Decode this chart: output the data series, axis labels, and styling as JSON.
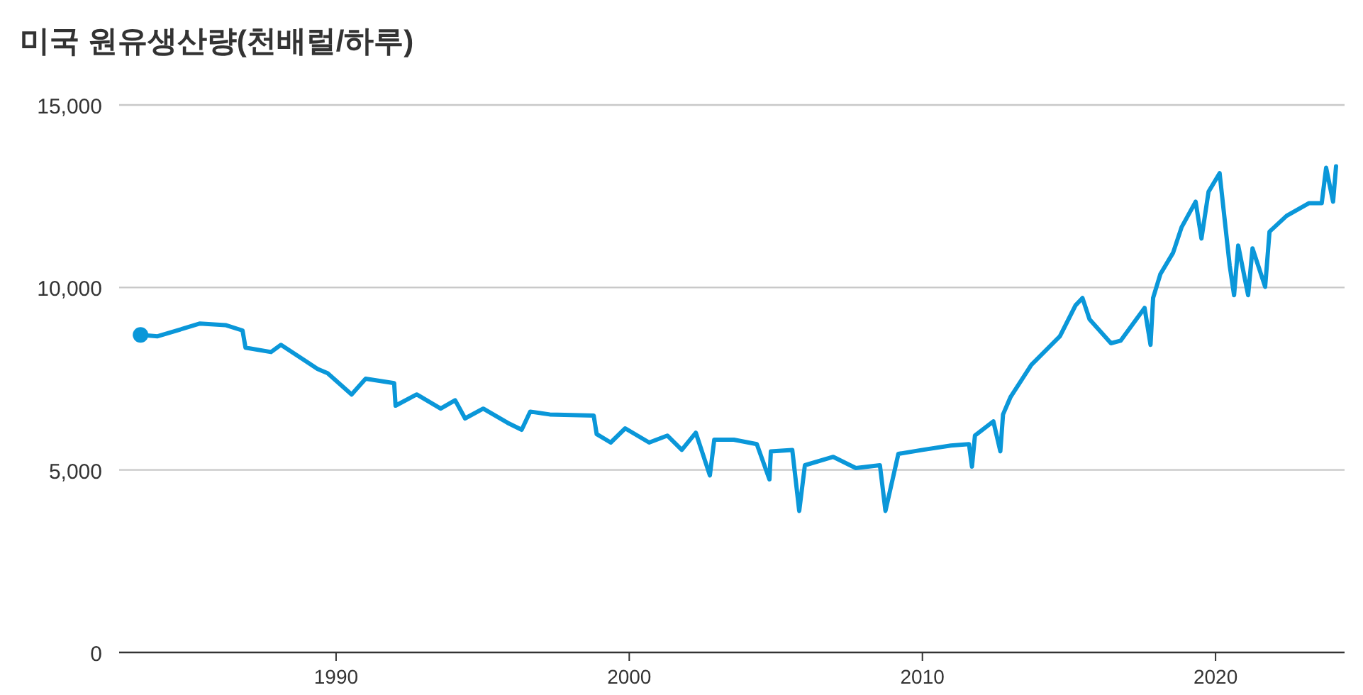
{
  "chart_data": {
    "type": "line",
    "title": "미국 원유생산량(천배럴/하루)",
    "xlim": [
      1982.6,
      2024.4
    ],
    "xticks": [
      1990,
      2000,
      2010,
      2020
    ],
    "ylim": [
      0,
      15000
    ],
    "yticks": [
      {
        "value": 0,
        "label": "0"
      },
      {
        "value": 5000,
        "label": "5,000"
      },
      {
        "value": 10000,
        "label": "10,000"
      },
      {
        "value": 15000,
        "label": "15,000"
      }
    ],
    "grid": "y",
    "series": [
      {
        "color": "#0a97d9",
        "x": [
          1983.33,
          1983.91,
          1985.36,
          1986.23,
          1986.81,
          1986.91,
          1987.78,
          1988.12,
          1989.37,
          1989.71,
          1990.53,
          1991.01,
          1991.98,
          1992.03,
          1992.75,
          1993.57,
          1994.06,
          1994.4,
          1995.02,
          1995.85,
          1996.33,
          1996.62,
          1997.29,
          1998.79,
          1998.89,
          1999.37,
          1999.86,
          2000.68,
          2001.3,
          2001.79,
          2002.27,
          2002.75,
          2002.9,
          2003.57,
          2004.35,
          2004.78,
          2004.83,
          2005.56,
          2005.8,
          2005.99,
          2006.96,
          2007.73,
          2008.55,
          2008.74,
          2009.18,
          2010.0,
          2010.97,
          2011.59,
          2011.69,
          2011.79,
          2012.42,
          2012.66,
          2012.75,
          2013.0,
          2013.72,
          2014.69,
          2015.22,
          2015.46,
          2015.7,
          2016.43,
          2016.76,
          2017.58,
          2017.78,
          2017.87,
          2018.12,
          2018.55,
          2018.84,
          2019.32,
          2019.52,
          2019.76,
          2020.14,
          2020.48,
          2020.63,
          2020.77,
          2021.11,
          2021.26,
          2021.69,
          2021.84,
          2022.42,
          2023.19,
          2023.62,
          2023.77,
          2024.01,
          2024.11
        ],
        "values": [
          8700,
          8660,
          9010,
          8970,
          8820,
          8350,
          8230,
          8430,
          7770,
          7650,
          7070,
          7500,
          7380,
          6760,
          7070,
          6680,
          6910,
          6410,
          6680,
          6290,
          6100,
          6600,
          6520,
          6490,
          5980,
          5750,
          6140,
          5750,
          5940,
          5550,
          6020,
          4850,
          5830,
          5830,
          5710,
          4740,
          5510,
          5550,
          3880,
          5130,
          5360,
          5050,
          5130,
          3880,
          5440,
          5550,
          5670,
          5710,
          5090,
          5940,
          6330,
          5510,
          6520,
          6990,
          7880,
          8660,
          9510,
          9710,
          9130,
          8470,
          8540,
          9440,
          8430,
          9710,
          10370,
          10950,
          11650,
          12350,
          11340,
          12620,
          13130,
          10600,
          9790,
          11150,
          9790,
          11070,
          10020,
          11530,
          11960,
          12310,
          12310,
          13280,
          12350,
          13320
        ]
      },
      {
        "type": "scatter",
        "marker": "circle",
        "color": "#0a97d9",
        "x": [
          1983.33
        ],
        "values": [
          8700
        ]
      }
    ]
  }
}
